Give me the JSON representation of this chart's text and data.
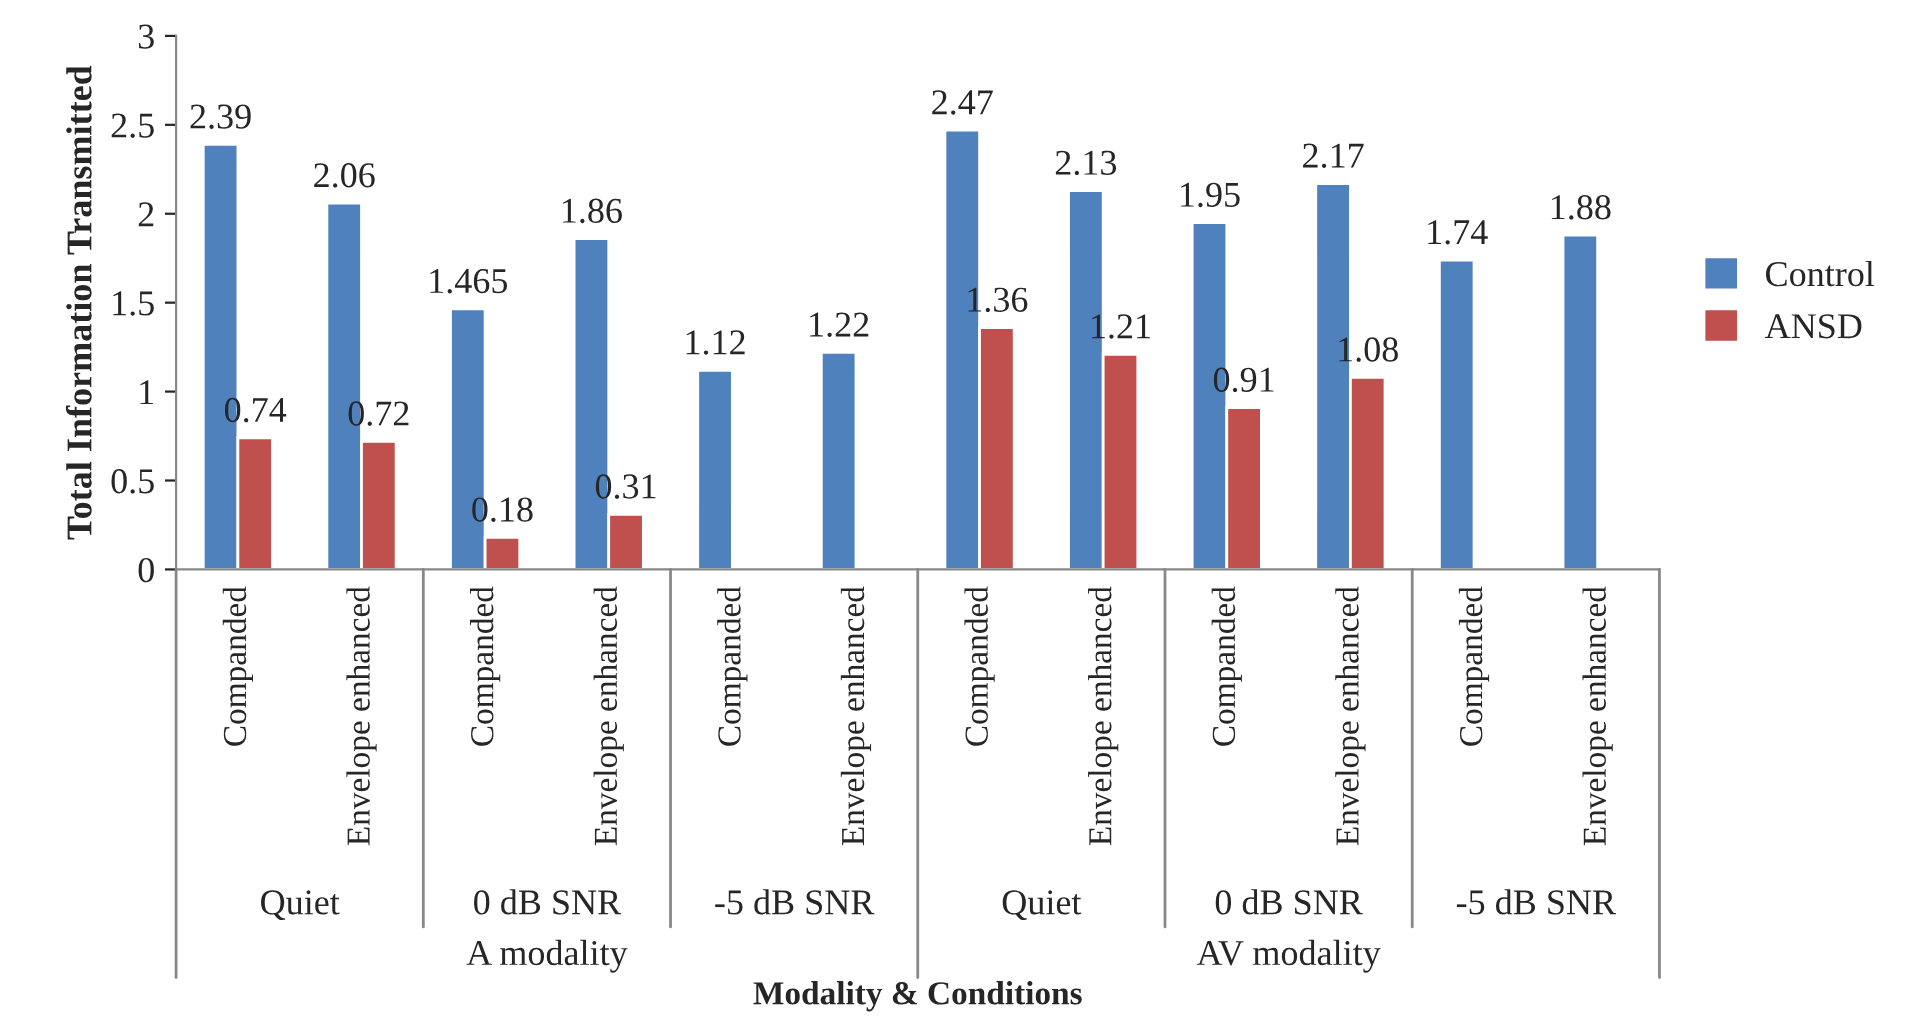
{
  "chart_data": {
    "type": "bar",
    "xlabel": "Modality & Conditions",
    "ylabel": "Total Information Transmitted",
    "categories": [
      "Companded",
      "Envelope enhanced",
      "Companded",
      "Envelope enhanced",
      "Companded",
      "Envelope enhanced",
      "Companded",
      "Envelope enhanced",
      "Companded",
      "Envelope enhanced",
      "Companded",
      "Envelope enhanced"
    ],
    "series": [
      {
        "name": "Control",
        "color": "#4f81bd",
        "values": [
          2.39,
          2.06,
          1.465,
          1.86,
          1.12,
          1.22,
          2.47,
          2.13,
          1.95,
          2.17,
          1.74,
          1.88
        ]
      },
      {
        "name": "ANSD",
        "color": "#c0504d",
        "values": [
          0.74,
          0.72,
          0.18,
          0.31,
          null,
          null,
          1.36,
          1.21,
          0.91,
          1.08,
          null,
          null
        ]
      }
    ],
    "annotations": [
      "Quiet",
      "0 dB SNR",
      "-5 dB SNR",
      "Quiet",
      "0 dB SNR",
      "-5 dB SNR",
      "A modality",
      "AV modality"
    ],
    "ylim": [
      0,
      3
    ],
    "yticks": [
      0,
      0.5,
      1,
      1.5,
      2,
      2.5,
      3
    ],
    "data_labels": true,
    "legend": "right",
    "grid": false
  }
}
